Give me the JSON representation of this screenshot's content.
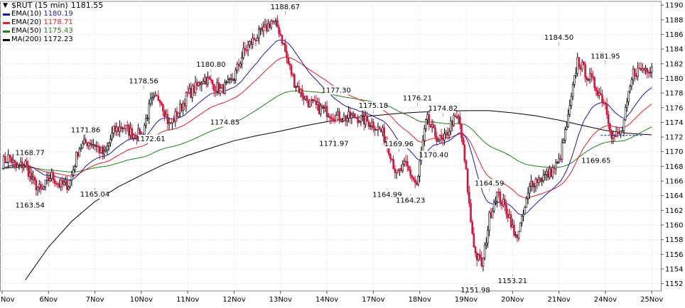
{
  "chart_data": {
    "type": "candlestick",
    "title": "$RUT (15 min)",
    "last_price": "1181.55",
    "legend": [
      {
        "label": "EMA(10)",
        "value": "1180.19",
        "color": "#1a1aa8"
      },
      {
        "label": "EMA(20)",
        "value": "1178.71",
        "color": "#e0202c"
      },
      {
        "label": "EMA(50)",
        "value": "1175.43",
        "color": "#208020"
      },
      {
        "label": "MA(200)",
        "value": "1172.23",
        "color": "#000000"
      }
    ],
    "x_tick_labels": [
      "Nov",
      "6Nov",
      "7Nov",
      "10Nov",
      "11Nov",
      "12Nov",
      "13Nov",
      "14Nov",
      "17Nov",
      "18Nov",
      "19Nov",
      "20Nov",
      "21Nov",
      "24Nov",
      "25Nov"
    ],
    "y_ticks": [
      1152,
      1154,
      1156,
      1158,
      1160,
      1162,
      1164,
      1166,
      1168,
      1170,
      1172,
      1174,
      1176,
      1178,
      1180,
      1182,
      1184,
      1186,
      1188,
      1190
    ],
    "ylim": [
      1151,
      1190.5
    ],
    "price_path_day_index": [
      0,
      0.15,
      0.3,
      0.5,
      0.65,
      0.85,
      1.05,
      1.25,
      1.45,
      1.65,
      1.85,
      2.0,
      2.2,
      2.4,
      2.6,
      2.8,
      3.0,
      3.2,
      3.4,
      3.6,
      3.8,
      4.0,
      4.2,
      4.35,
      4.5,
      4.7,
      4.9,
      5.0,
      5.2,
      5.35,
      5.5,
      5.65,
      5.8,
      5.95,
      6.05,
      6.15,
      6.3,
      6.45,
      6.6,
      6.8,
      7.0,
      7.2,
      7.4,
      7.6,
      7.8,
      8.0,
      8.2,
      8.35,
      8.5,
      8.7,
      8.95,
      9.0,
      9.15,
      9.3,
      9.5,
      9.7,
      9.85,
      10.0,
      10.1,
      10.2,
      10.35,
      10.5,
      10.65,
      10.8,
      10.95,
      11.05,
      11.2,
      11.4,
      11.6,
      11.8,
      12.0,
      12.2,
      12.4,
      12.6,
      12.8,
      13.0,
      13.15,
      13.35,
      13.6,
      13.8,
      14.0
    ],
    "price_path": [
      1168.5,
      1169.3,
      1167.8,
      1168.4,
      1166.0,
      1164.5,
      1166.8,
      1165.4,
      1165.6,
      1170.5,
      1171.4,
      1171.0,
      1169.5,
      1172.8,
      1173.5,
      1172.5,
      1172.2,
      1176.6,
      1177.5,
      1173.6,
      1175.5,
      1177.8,
      1178.9,
      1180.2,
      1179.4,
      1178.4,
      1179.2,
      1180.2,
      1183.5,
      1184.8,
      1185.8,
      1186.5,
      1187.8,
      1186.9,
      1185.0,
      1182.3,
      1179.5,
      1178.0,
      1176.8,
      1176.0,
      1175.5,
      1174.8,
      1174.6,
      1174.8,
      1174.3,
      1173.8,
      1172.5,
      1170.2,
      1166.8,
      1168.2,
      1165.2,
      1168.5,
      1174.5,
      1172.5,
      1171.2,
      1174.2,
      1174.5,
      1167.0,
      1160.5,
      1156.0,
      1154.5,
      1161.0,
      1164.4,
      1162.8,
      1161.0,
      1158.0,
      1160.5,
      1165.8,
      1166.4,
      1167.0,
      1168.6,
      1174.5,
      1182.5,
      1180.5,
      1178.8,
      1176.5,
      1172.0,
      1172.5,
      1180.8,
      1181.3,
      1181.55
    ],
    "ma200_day_index": [
      0.5,
      1.0,
      1.5,
      2.0,
      2.5,
      3.0,
      3.5,
      4.0,
      4.5,
      5.0,
      5.5,
      6.0,
      6.5,
      7.0,
      7.5,
      8.0,
      8.5,
      9.0,
      9.5,
      10.0,
      10.5,
      11.0,
      11.5,
      12.0,
      12.5,
      13.0,
      13.5,
      14.0
    ],
    "ma200_values": [
      1152.5,
      1157.0,
      1160.5,
      1163.2,
      1165.2,
      1166.8,
      1168.3,
      1169.5,
      1170.5,
      1171.5,
      1172.2,
      1172.8,
      1173.5,
      1174.1,
      1174.6,
      1174.9,
      1175.2,
      1175.4,
      1175.5,
      1175.6,
      1175.6,
      1175.3,
      1174.9,
      1174.3,
      1173.6,
      1172.9,
      1172.5,
      1172.3
    ],
    "annotations": [
      {
        "label": "1168.77",
        "value": 1168.77,
        "day_index": 0.6,
        "pos": "above"
      },
      {
        "label": "1163.54",
        "value": 1163.54,
        "day_index": 0.6,
        "pos": "below"
      },
      {
        "label": "1171.86",
        "value": 1171.86,
        "day_index": 1.8,
        "pos": "above"
      },
      {
        "label": "1165.04",
        "value": 1165.04,
        "day_index": 2.0,
        "pos": "below"
      },
      {
        "label": "1178.56",
        "value": 1178.56,
        "day_index": 3.05,
        "pos": "above"
      },
      {
        "label": "1172.61",
        "value": 1172.61,
        "day_index": 3.2,
        "pos": "below"
      },
      {
        "label": "1180.80",
        "value": 1180.8,
        "day_index": 4.5,
        "pos": "above"
      },
      {
        "label": "1174.85",
        "value": 1174.85,
        "day_index": 4.8,
        "pos": "below"
      },
      {
        "label": "1188.67",
        "value": 1188.67,
        "day_index": 6.1,
        "pos": "above"
      },
      {
        "label": "1177.30",
        "value": 1177.3,
        "day_index": 7.2,
        "pos": "above"
      },
      {
        "label": "1171.97",
        "value": 1171.97,
        "day_index": 7.15,
        "pos": "below"
      },
      {
        "label": "1175.18",
        "value": 1175.18,
        "day_index": 8.0,
        "pos": "above"
      },
      {
        "label": "1164.99",
        "value": 1164.99,
        "day_index": 8.3,
        "pos": "below"
      },
      {
        "label": "1169.96",
        "value": 1169.96,
        "day_index": 8.55,
        "pos": "above"
      },
      {
        "label": "1176.21",
        "value": 1176.21,
        "day_index": 8.95,
        "pos": "above"
      },
      {
        "label": "1164.23",
        "value": 1164.23,
        "day_index": 8.8,
        "pos": "below"
      },
      {
        "label": "1174.82",
        "value": 1174.82,
        "day_index": 9.5,
        "pos": "above"
      },
      {
        "label": "1170.40",
        "value": 1170.4,
        "day_index": 9.3,
        "pos": "below"
      },
      {
        "label": "1164.59",
        "value": 1164.59,
        "day_index": 10.5,
        "pos": "above"
      },
      {
        "label": "1151.98",
        "value": 1151.98,
        "day_index": 10.2,
        "pos": "below"
      },
      {
        "label": "1153.21",
        "value": 1153.21,
        "day_index": 11.0,
        "pos": "below"
      },
      {
        "label": "1184.50",
        "value": 1184.5,
        "day_index": 12.0,
        "pos": "above"
      },
      {
        "label": "1181.95",
        "value": 1181.95,
        "day_index": 13.0,
        "pos": "above"
      },
      {
        "label": "1169.65",
        "value": 1169.65,
        "day_index": 12.8,
        "pos": "below"
      }
    ]
  }
}
